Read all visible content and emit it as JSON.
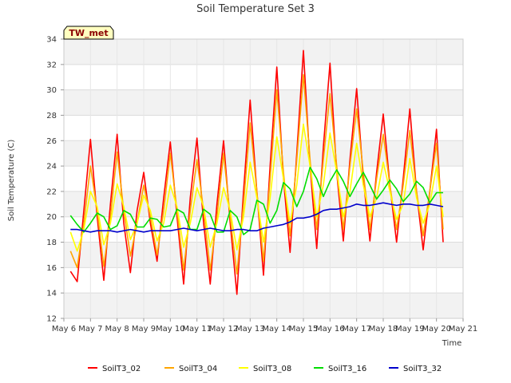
{
  "chart_data": {
    "type": "line",
    "title": "Soil Temperature Set 3",
    "xlabel": "Time",
    "ylabel": "Soil Temperature (C)",
    "station_label": "TW_met",
    "xlim": [
      6,
      21
    ],
    "ylim": [
      12,
      34
    ],
    "x_ticks": [
      6,
      7,
      8,
      9,
      10,
      11,
      12,
      13,
      14,
      15,
      16,
      17,
      18,
      19,
      20,
      21
    ],
    "x_tick_labels": [
      "May 6",
      "May 7",
      "May 8",
      "May 9",
      "May 10",
      "May 11",
      "May 12",
      "May 13",
      "May 14",
      "May 15",
      "May 16",
      "May 17",
      "May 18",
      "May 19",
      "May 20",
      "May 21"
    ],
    "y_ticks": [
      12,
      14,
      16,
      18,
      20,
      22,
      24,
      26,
      28,
      30,
      32,
      34
    ],
    "y_tick_labels": [
      "12",
      "14",
      "16",
      "18",
      "20",
      "22",
      "24",
      "26",
      "28",
      "30",
      "32",
      "34"
    ],
    "grid": true,
    "legend_position": "bottom",
    "series": [
      {
        "name": "SoilT3_02",
        "color": "#ff0000",
        "x": [
          6.25,
          6.5,
          6.75,
          7.0,
          7.25,
          7.5,
          7.75,
          8.0,
          8.25,
          8.5,
          8.75,
          9.0,
          9.25,
          9.5,
          9.75,
          10.0,
          10.25,
          10.5,
          10.75,
          11.0,
          11.25,
          11.5,
          11.75,
          12.0,
          12.25,
          12.5,
          12.75,
          13.0,
          13.25,
          13.5,
          13.75,
          14.0,
          14.25,
          14.5,
          14.75,
          15.0,
          15.25,
          15.5,
          15.75,
          16.0,
          16.25,
          16.5,
          16.75,
          17.0,
          17.25,
          17.5,
          17.75,
          18.0,
          18.25,
          18.5,
          18.75,
          19.0,
          19.25,
          19.5,
          19.75,
          20.0,
          20.25
        ],
        "y": [
          15.7,
          14.9,
          20.5,
          26.1,
          20.0,
          15.0,
          21.0,
          26.5,
          19.5,
          15.6,
          20.5,
          23.5,
          19.5,
          16.5,
          21.5,
          25.9,
          20.0,
          14.7,
          21.5,
          26.2,
          19.5,
          14.7,
          21.0,
          26.0,
          19.5,
          13.9,
          22.0,
          29.2,
          22.0,
          15.4,
          24.0,
          31.8,
          23.0,
          17.2,
          25.0,
          33.1,
          24.0,
          17.5,
          25.5,
          32.1,
          23.5,
          18.1,
          24.5,
          30.1,
          23.0,
          18.1,
          23.5,
          28.1,
          22.5,
          18.0,
          23.0,
          28.5,
          22.0,
          17.4,
          22.0,
          26.9,
          18.0
        ]
      },
      {
        "name": "SoilT3_04",
        "color": "#ffa500",
        "x": [
          6.25,
          6.5,
          6.75,
          7.0,
          7.25,
          7.5,
          7.75,
          8.0,
          8.25,
          8.5,
          8.75,
          9.0,
          9.25,
          9.5,
          9.75,
          10.0,
          10.25,
          10.5,
          10.75,
          11.0,
          11.25,
          11.5,
          11.75,
          12.0,
          12.25,
          12.5,
          12.75,
          13.0,
          13.25,
          13.5,
          13.75,
          14.0,
          14.25,
          14.5,
          14.75,
          15.0,
          15.25,
          15.5,
          15.75,
          16.0,
          16.25,
          16.5,
          16.75,
          17.0,
          17.25,
          17.5,
          17.75,
          18.0,
          18.25,
          18.5,
          18.75,
          19.0,
          19.25,
          19.5,
          19.75,
          20.0,
          20.25
        ],
        "y": [
          17.3,
          16.0,
          19.5,
          24.0,
          20.5,
          16.1,
          20.0,
          25.1,
          20.5,
          16.9,
          19.5,
          22.5,
          20.0,
          17.0,
          20.5,
          25.0,
          20.5,
          15.8,
          20.5,
          24.5,
          20.5,
          15.8,
          20.0,
          25.0,
          20.0,
          15.5,
          21.0,
          27.4,
          22.0,
          16.5,
          23.0,
          30.0,
          23.5,
          18.5,
          24.5,
          31.2,
          24.5,
          19.0,
          24.5,
          29.7,
          24.0,
          19.0,
          24.0,
          28.5,
          23.5,
          19.0,
          23.0,
          26.5,
          22.5,
          19.0,
          22.5,
          26.8,
          22.0,
          18.5,
          22.0,
          25.8,
          19.0
        ]
      },
      {
        "name": "SoilT3_08",
        "color": "#ffff00",
        "x": [
          6.25,
          6.5,
          6.75,
          7.0,
          7.25,
          7.5,
          7.75,
          8.0,
          8.25,
          8.5,
          8.75,
          9.0,
          9.25,
          9.5,
          9.75,
          10.0,
          10.25,
          10.5,
          10.75,
          11.0,
          11.25,
          11.5,
          11.75,
          12.0,
          12.25,
          12.5,
          12.75,
          13.0,
          13.25,
          13.5,
          13.75,
          14.0,
          14.25,
          14.5,
          14.75,
          15.0,
          15.25,
          15.5,
          15.75,
          16.0,
          16.25,
          16.5,
          16.75,
          17.0,
          17.25,
          17.5,
          17.75,
          18.0,
          18.25,
          18.5,
          18.75,
          19.0,
          19.25,
          19.5,
          19.75,
          20.0,
          20.25
        ],
        "y": [
          18.8,
          17.3,
          19.0,
          22.0,
          20.8,
          17.8,
          19.5,
          22.6,
          20.8,
          18.2,
          19.5,
          21.7,
          20.5,
          18.1,
          19.5,
          22.5,
          20.8,
          17.6,
          19.5,
          22.3,
          20.8,
          17.6,
          19.5,
          22.3,
          20.5,
          17.4,
          20.0,
          24.3,
          21.5,
          18.0,
          21.5,
          26.3,
          23.0,
          19.5,
          22.5,
          27.3,
          24.0,
          20.0,
          22.5,
          26.6,
          23.5,
          20.0,
          22.0,
          25.8,
          22.5,
          20.0,
          21.5,
          24.3,
          22.0,
          19.8,
          21.0,
          24.6,
          21.5,
          19.5,
          21.0,
          24.0,
          20.0
        ]
      },
      {
        "name": "SoilT3_16",
        "color": "#00dd00",
        "x": [
          6.25,
          6.5,
          6.75,
          7.0,
          7.25,
          7.5,
          7.75,
          8.0,
          8.25,
          8.5,
          8.75,
          9.0,
          9.25,
          9.5,
          9.75,
          10.0,
          10.25,
          10.5,
          10.75,
          11.0,
          11.25,
          11.5,
          11.75,
          12.0,
          12.25,
          12.5,
          12.75,
          13.0,
          13.25,
          13.5,
          13.75,
          14.0,
          14.25,
          14.5,
          14.75,
          15.0,
          15.25,
          15.5,
          15.75,
          16.0,
          16.25,
          16.5,
          16.75,
          17.0,
          17.25,
          17.5,
          17.75,
          18.0,
          18.25,
          18.5,
          18.75,
          19.0,
          19.25,
          19.5,
          19.75,
          20.0,
          20.25
        ],
        "y": [
          20.1,
          19.4,
          18.8,
          19.5,
          20.3,
          20.0,
          19.0,
          19.3,
          20.5,
          20.2,
          19.2,
          19.2,
          19.9,
          19.8,
          19.2,
          19.3,
          20.6,
          20.3,
          19.0,
          19.0,
          20.6,
          20.2,
          18.8,
          18.8,
          20.5,
          20.0,
          18.6,
          19.0,
          21.3,
          21.0,
          19.5,
          20.5,
          22.7,
          22.2,
          20.8,
          22.0,
          23.9,
          23.0,
          21.6,
          22.8,
          23.7,
          22.8,
          21.6,
          22.6,
          23.5,
          22.5,
          21.4,
          22.1,
          22.9,
          22.2,
          21.2,
          21.8,
          22.8,
          22.3,
          21.1,
          21.9,
          21.9
        ]
      },
      {
        "name": "SoilT3_32",
        "color": "#0000cc",
        "x": [
          6.25,
          6.5,
          6.75,
          7.0,
          7.25,
          7.5,
          7.75,
          8.0,
          8.25,
          8.5,
          8.75,
          9.0,
          9.25,
          9.5,
          9.75,
          10.0,
          10.25,
          10.5,
          10.75,
          11.0,
          11.25,
          11.5,
          11.75,
          12.0,
          12.25,
          12.5,
          12.75,
          13.0,
          13.25,
          13.5,
          13.75,
          14.0,
          14.25,
          14.5,
          14.75,
          15.0,
          15.25,
          15.5,
          15.75,
          16.0,
          16.25,
          16.5,
          16.75,
          17.0,
          17.25,
          17.5,
          17.75,
          18.0,
          18.25,
          18.5,
          18.75,
          19.0,
          19.25,
          19.5,
          19.75,
          20.0,
          20.25
        ],
        "y": [
          19.0,
          19.0,
          18.9,
          18.8,
          18.9,
          18.9,
          18.9,
          18.8,
          18.9,
          19.0,
          18.9,
          18.8,
          18.9,
          18.9,
          18.9,
          18.9,
          19.0,
          19.1,
          19.0,
          18.9,
          19.0,
          19.1,
          19.0,
          18.9,
          18.9,
          19.0,
          19.0,
          18.9,
          18.9,
          19.1,
          19.2,
          19.3,
          19.4,
          19.6,
          19.9,
          19.9,
          20.0,
          20.2,
          20.5,
          20.6,
          20.6,
          20.7,
          20.8,
          21.0,
          20.9,
          20.9,
          21.0,
          21.1,
          21.0,
          20.9,
          21.0,
          21.0,
          20.9,
          20.9,
          21.0,
          20.9,
          20.8
        ]
      }
    ]
  }
}
